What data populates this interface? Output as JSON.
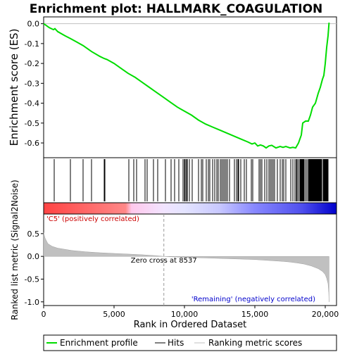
{
  "chart_data": {
    "type": "line",
    "title": "Enrichment plot: HALLMARK_COAGULATION",
    "xlabel": "Rank in Ordered Dataset",
    "xlim": [
      0,
      20800
    ],
    "xticks": [
      0,
      5000,
      10000,
      15000,
      20000
    ],
    "xtick_labels": [
      "0",
      "5,000",
      "10,000",
      "15,000",
      "20,000"
    ],
    "top_panel": {
      "ylabel": "Enrichment score (ES)",
      "ylim": [
        -0.66,
        0.02
      ],
      "yticks": [
        0.0,
        -0.1,
        -0.2,
        -0.3,
        -0.4,
        -0.5,
        -0.6
      ],
      "ytick_labels": [
        "0.0",
        "-0.1",
        "-0.2",
        "-0.3",
        "-0.4",
        "-0.5",
        "-0.6"
      ],
      "series": [
        {
          "name": "Enrichment profile",
          "color": "#00dd00",
          "x": [
            0,
            400,
            700,
            800,
            1000,
            1500,
            1900,
            2300,
            2800,
            3400,
            4000,
            4300,
            4500,
            5000,
            5500,
            6000,
            6500,
            7000,
            7500,
            8000,
            8500,
            9000,
            9500,
            10000,
            10500,
            11000,
            11500,
            12000,
            12500,
            13000,
            13500,
            14000,
            14500,
            14800,
            15000,
            15200,
            15400,
            15600,
            15800,
            16000,
            16200,
            16500,
            16800,
            17000,
            17200,
            17500,
            17700,
            17900,
            18100,
            18300,
            18400,
            18600,
            18800,
            18950,
            19100,
            19300,
            19500,
            19650,
            19800,
            19900,
            20000,
            20100,
            20200,
            20270
          ],
          "y": [
            0.0,
            -0.02,
            -0.03,
            -0.025,
            -0.04,
            -0.06,
            -0.075,
            -0.09,
            -0.11,
            -0.14,
            -0.165,
            -0.175,
            -0.18,
            -0.2,
            -0.225,
            -0.25,
            -0.27,
            -0.295,
            -0.32,
            -0.345,
            -0.37,
            -0.395,
            -0.42,
            -0.44,
            -0.46,
            -0.485,
            -0.505,
            -0.52,
            -0.535,
            -0.55,
            -0.565,
            -0.58,
            -0.595,
            -0.605,
            -0.6,
            -0.615,
            -0.61,
            -0.615,
            -0.625,
            -0.615,
            -0.612,
            -0.625,
            -0.618,
            -0.622,
            -0.618,
            -0.625,
            -0.622,
            -0.625,
            -0.6,
            -0.56,
            -0.5,
            -0.49,
            -0.49,
            -0.46,
            -0.42,
            -0.4,
            -0.35,
            -0.32,
            -0.28,
            -0.26,
            -0.2,
            -0.12,
            -0.06,
            0.005
          ]
        }
      ]
    },
    "hits": {
      "name": "Hits",
      "color": "#000000",
      "x": [
        750,
        1900,
        2800,
        3400,
        4300,
        4350,
        6050,
        6400,
        6600,
        7200,
        7350,
        7800,
        8100,
        8650,
        9050,
        9300,
        9600,
        9900,
        10000,
        10050,
        10150,
        10200,
        10350,
        10550,
        11000,
        11200,
        11300,
        11550,
        11700,
        11800,
        12000,
        12150,
        12300,
        12400,
        12550,
        12650,
        12750,
        12850,
        12950,
        13050,
        13200,
        13550,
        13700,
        13800,
        13850,
        14000,
        14250,
        14400,
        14750,
        14850,
        15300,
        15400,
        15500,
        15700,
        15850,
        16000,
        16100,
        16200,
        16300,
        16400,
        16600,
        16800,
        16950,
        17050,
        17200,
        17550,
        17700,
        17850,
        17950,
        18000,
        18100,
        18200,
        18250,
        18300,
        18350,
        18400,
        18450,
        18500,
        18600,
        18700,
        18800,
        18850,
        18900,
        18950,
        19000,
        19050,
        19100,
        19150,
        19200,
        19250,
        19300,
        19350,
        19400,
        19450,
        19500,
        19550,
        19600,
        19650,
        19700,
        19750,
        19850,
        19900,
        19950,
        20000,
        20050,
        20100,
        20150,
        20200
      ]
    },
    "rank_metric": {
      "name": "Ranking metric scores",
      "color": "#c0c0c0",
      "ylabel": "Ranked list metric (Signal2Noise)",
      "ylim": [
        -1.05,
        0.9
      ],
      "yticks": [
        0.5,
        0.0,
        -0.5,
        -1.0
      ],
      "ytick_labels": [
        "0.5",
        "0.0",
        "-0.5",
        "-1.0"
      ],
      "x": [
        0,
        100,
        300,
        600,
        1000,
        2000,
        3000,
        4000,
        5000,
        6000,
        7000,
        8000,
        8537,
        9000,
        10000,
        11000,
        12000,
        13000,
        14000,
        15000,
        16000,
        17000,
        17500,
        18000,
        18500,
        19000,
        19500,
        19800,
        20000,
        20100,
        20200,
        20250,
        20270
      ],
      "y": [
        0.52,
        0.4,
        0.28,
        0.22,
        0.18,
        0.13,
        0.1,
        0.08,
        0.065,
        0.05,
        0.035,
        0.015,
        0.0,
        -0.01,
        -0.02,
        -0.03,
        -0.04,
        -0.05,
        -0.06,
        -0.07,
        -0.09,
        -0.11,
        -0.125,
        -0.145,
        -0.17,
        -0.21,
        -0.27,
        -0.33,
        -0.4,
        -0.48,
        -0.6,
        -0.8,
        -1.0
      ]
    },
    "zero_cross": 8537,
    "annotations": {
      "positive": "'C5' (positively correlated)",
      "negative": "'Remaining' (negatively correlated)",
      "zero_cross": "Zero cross at 8537"
    },
    "colors": {
      "positive_label": "#cc0000",
      "negative_label": "#0000cc",
      "heat_start": "#ff4444",
      "heat_mid": "#ffffff",
      "heat_end": "#0000dd",
      "frame": "#000000"
    },
    "legend": {
      "placement": "bottom",
      "items": [
        "Enrichment profile",
        "Hits",
        "Ranking metric scores"
      ]
    }
  }
}
